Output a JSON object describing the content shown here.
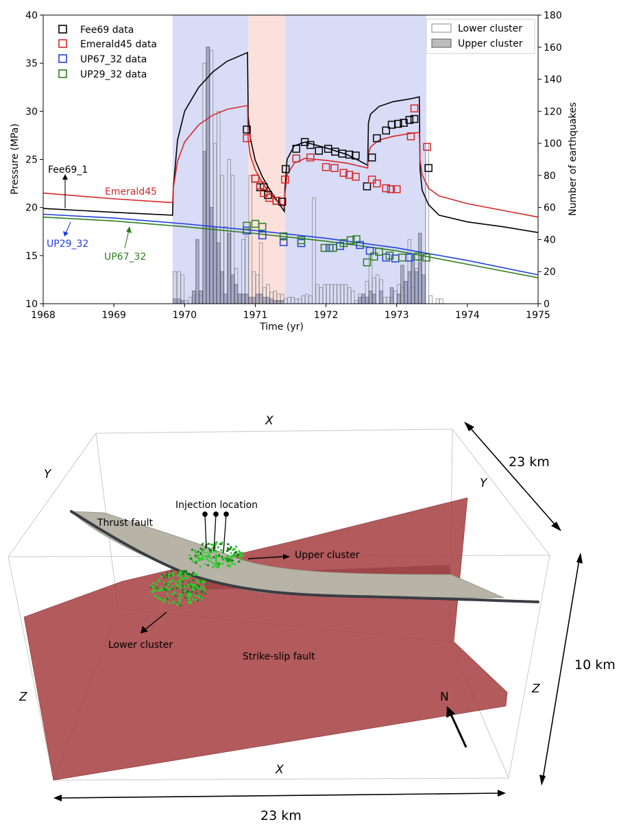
{
  "chart_data": [
    {
      "type": "line",
      "title": "",
      "xlabel": "Time (yr)",
      "ylabel": "Pressure (MPa)",
      "y2label": "Number of earthquakes",
      "xlim": [
        1968,
        1975
      ],
      "ylim": [
        10,
        40
      ],
      "y2lim": [
        0,
        180
      ],
      "xticks": [
        "1968",
        "1969",
        "1970",
        "1971",
        "1972",
        "1973",
        "1974",
        "1975"
      ],
      "yticks": [
        "10",
        "15",
        "20",
        "25",
        "30",
        "35",
        "40"
      ],
      "y2ticks": [
        "0",
        "20",
        "40",
        "60",
        "80",
        "100",
        "120",
        "140",
        "160",
        "180"
      ],
      "grid": false,
      "shaded_periods": [
        {
          "from": 1969.83,
          "to": 1970.9,
          "color": "#d8dcf7"
        },
        {
          "from": 1970.9,
          "to": 1971.42,
          "color": "#fbe0dc"
        },
        {
          "from": 1971.42,
          "to": 1973.42,
          "color": "#d8dcf7"
        }
      ],
      "legend_markers": {
        "position": "top-left",
        "entries": [
          {
            "label": "Fee69 data",
            "color": "#000000"
          },
          {
            "label": "Emerald45 data",
            "color": "#d62728"
          },
          {
            "label": "UP67_32 data",
            "color": "#1f3fdf"
          },
          {
            "label": "UP29_32 data",
            "color": "#2e7d1f"
          }
        ]
      },
      "legend_bars": {
        "position": "top-right",
        "entries": [
          {
            "label": "Lower cluster",
            "fill": "#ffffff"
          },
          {
            "label": "Upper cluster",
            "fill": "#bdbdbd"
          }
        ]
      },
      "annotations": [
        {
          "text": "Fee69_1",
          "color": "#000000"
        },
        {
          "text": "Emerald45",
          "color": "#d62728"
        },
        {
          "text": "UP29_32",
          "color": "#1f3fdf"
        },
        {
          "text": "UP67_32",
          "color": "#2e7d1f"
        }
      ],
      "series_lines": [
        {
          "name": "Fee69_1",
          "color": "#000000",
          "x": [
            1968,
            1969,
            1969.83,
            1969.84,
            1969.9,
            1970,
            1970.2,
            1970.4,
            1970.6,
            1970.89,
            1970.9,
            1970.93,
            1971,
            1971.1,
            1971.2,
            1971.3,
            1971.41,
            1971.42,
            1971.45,
            1971.55,
            1971.7,
            1972,
            1972.3,
            1972.59,
            1972.6,
            1972.63,
            1972.75,
            1972.95,
            1973.2,
            1973.32,
            1973.33,
            1973.36,
            1973.45,
            1973.6,
            1974,
            1974.5,
            1975
          ],
          "y": [
            19.9,
            19.5,
            19.2,
            22,
            27,
            30,
            32.5,
            34.1,
            35.2,
            36.1,
            29.5,
            27.2,
            24.9,
            23.2,
            21.9,
            20.8,
            19.6,
            22,
            25,
            26.4,
            26.8,
            26.2,
            25.5,
            24.4,
            28.8,
            29.7,
            30.5,
            31,
            31.3,
            31.5,
            24,
            21.8,
            20.3,
            19.2,
            18.5,
            18.0,
            17.4
          ]
        },
        {
          "name": "Emerald45",
          "color": "#d62728",
          "x": [
            1968,
            1969,
            1969.83,
            1969.84,
            1969.9,
            1970,
            1970.2,
            1970.4,
            1970.6,
            1970.89,
            1970.9,
            1970.93,
            1971,
            1971.1,
            1971.2,
            1971.3,
            1971.41,
            1971.42,
            1971.45,
            1971.55,
            1971.7,
            1972,
            1972.3,
            1972.59,
            1972.6,
            1972.63,
            1972.75,
            1972.95,
            1973.2,
            1973.32,
            1973.33,
            1973.36,
            1973.45,
            1973.6,
            1974,
            1974.5,
            1975
          ],
          "y": [
            21.5,
            20.9,
            20.5,
            22,
            24.8,
            26.8,
            28.6,
            29.6,
            30.2,
            30.6,
            27,
            25.4,
            23.9,
            22.6,
            21.5,
            20.7,
            20.1,
            21.4,
            23.4,
            24.6,
            25.1,
            24.9,
            24.6,
            24.1,
            25.6,
            26.3,
            27,
            27.4,
            27.7,
            27.8,
            24.9,
            23.4,
            22.0,
            21.2,
            20.4,
            19.7,
            19.0
          ]
        },
        {
          "name": "UP29_32",
          "color": "#1f3fdf",
          "x": [
            1968,
            1969,
            1970,
            1971,
            1972,
            1973,
            1974,
            1975
          ],
          "y": [
            19.3,
            18.9,
            18.3,
            17.6,
            16.8,
            15.8,
            14.5,
            13.0
          ]
        },
        {
          "name": "UP67_32",
          "color": "#2e7d1f",
          "x": [
            1968,
            1969,
            1970,
            1971,
            1972,
            1973,
            1974,
            1975
          ],
          "y": [
            19.0,
            18.6,
            18.0,
            17.3,
            16.5,
            15.5,
            14.1,
            12.7
          ]
        }
      ],
      "series_points": [
        {
          "name": "Fee69 data",
          "color": "#000000",
          "x": [
            1970.88,
            1971.0,
            1971.07,
            1971.12,
            1971.18,
            1971.3,
            1971.38,
            1971.43,
            1971.58,
            1971.7,
            1971.78,
            1971.9,
            1972.03,
            1972.13,
            1972.23,
            1972.33,
            1972.42,
            1972.58,
            1972.65,
            1972.72,
            1972.85,
            1972.93,
            1973.02,
            1973.1,
            1973.18,
            1973.25,
            1973.45
          ],
          "y": [
            28.1,
            23,
            22.1,
            22.1,
            21.3,
            20.7,
            20.6,
            24,
            26.1,
            26.8,
            26.5,
            25.9,
            26.1,
            25.8,
            25.6,
            25.5,
            25.4,
            22.2,
            25.2,
            27.2,
            28,
            28.6,
            28.7,
            28.8,
            29.1,
            29.2,
            24.1
          ]
        },
        {
          "name": "Emerald45 data",
          "color": "#d62728",
          "x": [
            1970.88,
            1971.0,
            1971.07,
            1971.12,
            1971.2,
            1971.3,
            1971.42,
            1971.58,
            1971.78,
            1972.0,
            1972.12,
            1972.25,
            1972.33,
            1972.42,
            1972.65,
            1972.72,
            1972.85,
            1972.92,
            1973.0,
            1973.2,
            1973.25,
            1973.43
          ],
          "y": [
            27.2,
            23.0,
            22.3,
            21.5,
            21.0,
            20.7,
            22.9,
            25.1,
            25.2,
            24.2,
            24.1,
            23.6,
            23.4,
            23.2,
            22.9,
            22.5,
            22.0,
            21.9,
            21.9,
            27.4,
            30.3,
            26.3
          ]
        },
        {
          "name": "UP67_32 data",
          "color": "#1f3fdf",
          "x": [
            1970.88,
            1971.1,
            1971.4,
            1971.65,
            1972.05,
            1972.2,
            1972.48,
            1972.62,
            1972.85,
            1972.98,
            1973.18
          ],
          "y": [
            17.6,
            17.1,
            16.4,
            16.3,
            15.8,
            16.0,
            16.1,
            15.5,
            14.8,
            14.7,
            14.8
          ]
        },
        {
          "name": "UP29_32 data",
          "color": "#2e7d1f",
          "x": [
            1970.88,
            1971.0,
            1971.1,
            1971.4,
            1971.65,
            1971.98,
            1972.1,
            1972.25,
            1972.35,
            1972.43,
            1972.58,
            1972.68,
            1972.75,
            1972.9,
            1973.08,
            1973.3,
            1973.42
          ],
          "y": [
            18.1,
            18.3,
            18.0,
            17.0,
            16.6,
            15.8,
            15.8,
            16.3,
            16.6,
            16.7,
            14.3,
            14.9,
            15.4,
            15.0,
            14.8,
            14.9,
            14.8
          ]
        }
      ],
      "bar_series": [
        {
          "name": "Lower cluster",
          "width": 0.05,
          "x": [
            1969.86,
            1969.92,
            1969.97,
            1970.02,
            1970.08,
            1970.13,
            1970.18,
            1970.23,
            1970.28,
            1970.33,
            1970.38,
            1970.43,
            1970.48,
            1970.53,
            1970.58,
            1970.63,
            1970.68,
            1970.73,
            1970.78,
            1970.83,
            1970.88,
            1970.93,
            1970.98,
            1971.03,
            1971.08,
            1971.13,
            1971.18,
            1971.23,
            1971.28,
            1971.33,
            1971.38,
            1971.43,
            1971.48,
            1971.53,
            1971.58,
            1971.63,
            1971.68,
            1971.73,
            1971.78,
            1971.83,
            1971.88,
            1971.93,
            1971.98,
            1972.03,
            1972.08,
            1972.13,
            1972.18,
            1972.23,
            1972.28,
            1972.33,
            1972.38,
            1972.43,
            1972.48,
            1972.53,
            1972.58,
            1972.63,
            1972.68,
            1972.73,
            1972.78,
            1972.83,
            1972.88,
            1972.93,
            1972.98,
            1973.03,
            1973.08,
            1973.13,
            1973.18,
            1973.23,
            1973.28,
            1973.33,
            1973.38,
            1973.43,
            1973.48,
            1973.58,
            1973.63
          ],
          "values": [
            20,
            20,
            18,
            2,
            4,
            5,
            6,
            5,
            150,
            160,
            158,
            100,
            120,
            80,
            48,
            90,
            80,
            22,
            6,
            40,
            42,
            80,
            20,
            18,
            38,
            10,
            12,
            7,
            8,
            6,
            6,
            3,
            4,
            4,
            3,
            3,
            5,
            6,
            5,
            66,
            12,
            10,
            12,
            12,
            12,
            12,
            12,
            12,
            12,
            10,
            8,
            2,
            6,
            4,
            14,
            30,
            16,
            18,
            15,
            4,
            4,
            4,
            8,
            12,
            10,
            5,
            40,
            10,
            22,
            25,
            30,
            100,
            5,
            3,
            3
          ]
        },
        {
          "name": "Upper cluster",
          "width": 0.05,
          "x": [
            1969.86,
            1969.92,
            1969.97,
            1970.13,
            1970.18,
            1970.23,
            1970.28,
            1970.33,
            1970.38,
            1970.43,
            1970.48,
            1970.53,
            1970.58,
            1970.63,
            1970.68,
            1970.73,
            1970.78,
            1970.83,
            1970.88,
            1970.93,
            1970.98,
            1971.03,
            1971.08,
            1971.13,
            1971.18,
            1971.23,
            1971.28,
            1971.33,
            1971.38,
            1972.48,
            1972.53,
            1972.58,
            1972.63,
            1972.68,
            1972.78,
            1972.93,
            1973.03,
            1973.08,
            1973.13,
            1973.18,
            1973.23,
            1973.28,
            1973.33,
            1973.38
          ],
          "values": [
            3,
            3,
            2,
            8,
            40,
            8,
            95,
            160,
            60,
            48,
            38,
            20,
            6,
            44,
            18,
            12,
            6,
            6,
            6,
            4,
            4,
            6,
            6,
            4,
            4,
            3,
            2,
            2,
            2,
            4,
            6,
            4,
            8,
            6,
            8,
            10,
            6,
            24,
            14,
            20,
            30,
            20,
            44,
            18
          ]
        }
      ]
    },
    {
      "type": "diagram",
      "axis_labels": [
        "X",
        "X",
        "Y",
        "Y",
        "Z",
        "Z"
      ],
      "dimensions": {
        "width": "23 km",
        "depth": "23 km",
        "height": "10 km"
      },
      "labels": {
        "thrust_fault": "Thrust fault",
        "injection_location": "Injection location",
        "upper_cluster": "Upper cluster",
        "lower_cluster": "Lower cluster",
        "strike_slip_fault": "Strike-slip fault",
        "north": "N"
      },
      "colors": {
        "strike_slip": "#a53d3f",
        "thrust_fault": "#b7b3a6",
        "earthquakes": "#2ecc2e"
      }
    }
  ]
}
